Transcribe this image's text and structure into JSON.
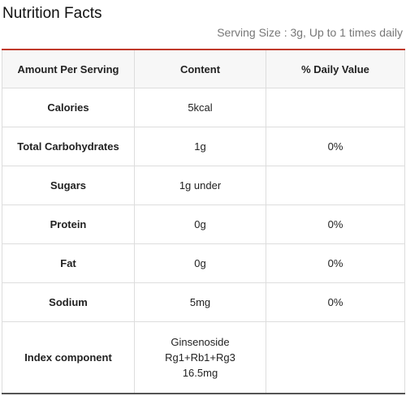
{
  "header": {
    "title": "Nutrition Facts",
    "serving": "Serving Size : 3g, Up to 1 times daily"
  },
  "table": {
    "columns": [
      "Amount Per Serving",
      "Content",
      "% Daily Value"
    ],
    "rows": [
      [
        "Calories",
        "5kcal",
        null
      ],
      [
        "Total Carbohydrates",
        "1g",
        "0%"
      ],
      [
        "Sugars",
        "1g under",
        null
      ],
      [
        "Protein",
        "0g",
        "0%"
      ],
      [
        "Fat",
        "0g",
        "0%"
      ],
      [
        "Sodium",
        "5mg",
        "0%"
      ],
      [
        "Index component",
        [
          "Ginsenoside",
          "Rg1+Rb1+Rg3",
          "16.5mg"
        ],
        null
      ]
    ]
  }
}
